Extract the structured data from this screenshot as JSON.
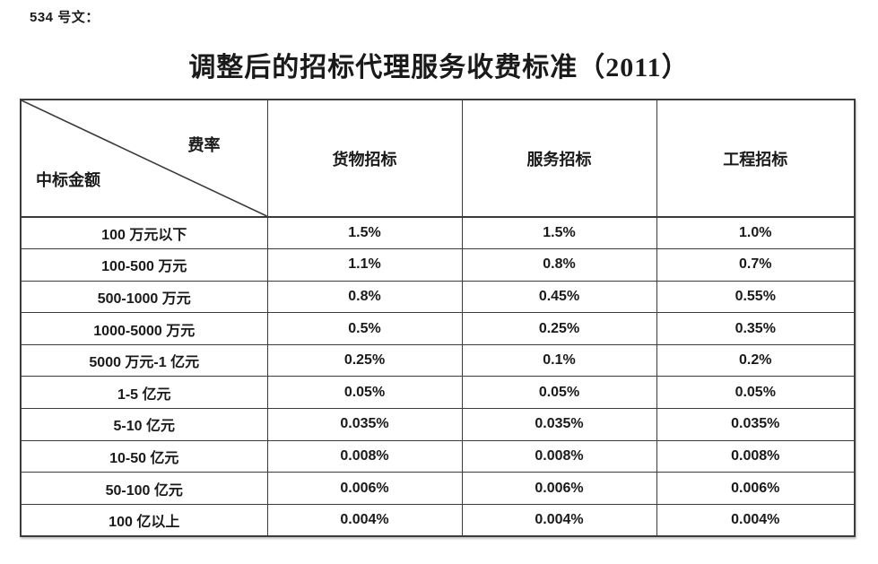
{
  "doc_label": "534 号文：",
  "title": "调整后的招标代理服务收费标准（2011）",
  "table": {
    "corner": {
      "top_right": "费率",
      "bottom_left": "中标金额"
    },
    "columns": [
      "货物招标",
      "服务招标",
      "工程招标"
    ],
    "rows": [
      {
        "label": "100 万元以下",
        "values": [
          "1.5%",
          "1.5%",
          "1.0%"
        ]
      },
      {
        "label": "100-500 万元",
        "values": [
          "1.1%",
          "0.8%",
          "0.7%"
        ]
      },
      {
        "label": "500-1000 万元",
        "values": [
          "0.8%",
          "0.45%",
          "0.55%"
        ]
      },
      {
        "label": "1000-5000 万元",
        "values": [
          "0.5%",
          "0.25%",
          "0.35%"
        ]
      },
      {
        "label": "5000 万元-1 亿元",
        "values": [
          "0.25%",
          "0.1%",
          "0.2%"
        ]
      },
      {
        "label": "1-5 亿元",
        "values": [
          "0.05%",
          "0.05%",
          "0.05%"
        ]
      },
      {
        "label": "5-10 亿元",
        "values": [
          "0.035%",
          "0.035%",
          "0.035%"
        ]
      },
      {
        "label": "10-50 亿元",
        "values": [
          "0.008%",
          "0.008%",
          "0.008%"
        ]
      },
      {
        "label": "50-100 亿元",
        "values": [
          "0.006%",
          "0.006%",
          "0.006%"
        ]
      },
      {
        "label": "100 亿以上",
        "values": [
          "0.004%",
          "0.004%",
          "0.004%"
        ]
      }
    ]
  },
  "colors": {
    "text": "#1a1a1a",
    "border": "#3b3b3b",
    "background": "#ffffff"
  }
}
